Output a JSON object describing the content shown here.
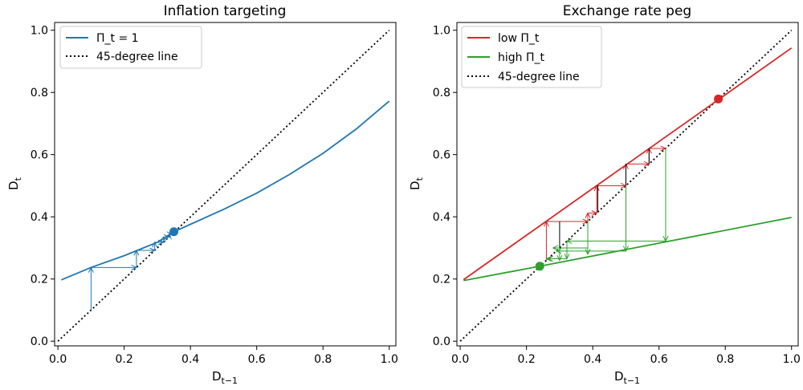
{
  "chart_data": [
    {
      "type": "line",
      "title": "Inflation targeting",
      "xlabel": "D_{t-1}",
      "ylabel": "D_t",
      "xlim": [
        -0.01,
        1.02
      ],
      "ylim": [
        -0.015,
        1.025
      ],
      "xticks": [
        "0.0",
        "0.2",
        "0.4",
        "0.6",
        "0.8",
        "1.0"
      ],
      "yticks": [
        "0.0",
        "0.2",
        "0.4",
        "0.6",
        "0.8",
        "1.0"
      ],
      "legend_position": "top-left",
      "grid": false,
      "series": [
        {
          "name": "Π_t = 1",
          "color": "#1f77b4",
          "style": "solid",
          "x": [
            0.01,
            0.1,
            0.2,
            0.3,
            0.35,
            0.4,
            0.5,
            0.6,
            0.7,
            0.8,
            0.9,
            1.0
          ],
          "y": [
            0.197,
            0.237,
            0.275,
            0.318,
            0.352,
            0.376,
            0.424,
            0.476,
            0.537,
            0.604,
            0.682,
            0.772
          ]
        },
        {
          "name": "45-degree line",
          "color": "#000000",
          "style": "dotted",
          "x": [
            0.0,
            1.0
          ],
          "y": [
            0.0,
            1.0
          ]
        }
      ],
      "points": [
        {
          "x": 0.35,
          "y": 0.352,
          "color": "#1f77b4"
        }
      ],
      "cobweb": {
        "color": "#1f77b4",
        "path": [
          [
            0.1,
            0.1
          ],
          [
            0.1,
            0.237
          ],
          [
            0.237,
            0.237
          ],
          [
            0.237,
            0.292
          ],
          [
            0.292,
            0.292
          ],
          [
            0.292,
            0.318
          ],
          [
            0.318,
            0.318
          ],
          [
            0.318,
            0.335
          ],
          [
            0.335,
            0.335
          ],
          [
            0.335,
            0.344
          ],
          [
            0.344,
            0.344
          ]
        ]
      }
    },
    {
      "type": "line",
      "title": "Exchange rate peg",
      "xlabel": "D_{t-1}",
      "ylabel": "D_t",
      "xlim": [
        -0.01,
        1.02
      ],
      "ylim": [
        -0.015,
        1.025
      ],
      "xticks": [
        "0.0",
        "0.2",
        "0.4",
        "0.6",
        "0.8",
        "1.0"
      ],
      "yticks": [
        "0.0",
        "0.2",
        "0.4",
        "0.6",
        "0.8",
        "1.0"
      ],
      "legend_position": "top-left",
      "grid": false,
      "series": [
        {
          "name": "low Π_t",
          "color": "#d62728",
          "style": "solid",
          "x": [
            0.01,
            1.0
          ],
          "y": [
            0.198,
            0.943
          ]
        },
        {
          "name": "high Π_t",
          "color": "#2ca02c",
          "style": "solid",
          "x": [
            0.01,
            0.24,
            1.0
          ],
          "y": [
            0.195,
            0.241,
            0.398
          ]
        },
        {
          "name": "45-degree line",
          "color": "#000000",
          "style": "dotted",
          "x": [
            0.0,
            1.0
          ],
          "y": [
            0.0,
            1.0
          ]
        }
      ],
      "points": [
        {
          "x": 0.779,
          "y": 0.779,
          "color": "#d62728"
        },
        {
          "x": 0.24,
          "y": 0.241,
          "color": "#2ca02c"
        }
      ],
      "cobweb_red": {
        "color": "#d62728",
        "path": [
          [
            0.26,
            0.26
          ],
          [
            0.26,
            0.385
          ],
          [
            0.385,
            0.385
          ],
          [
            0.385,
            0.412
          ],
          [
            0.412,
            0.412
          ],
          [
            0.412,
            0.5
          ],
          [
            0.5,
            0.5
          ],
          [
            0.5,
            0.57
          ],
          [
            0.57,
            0.57
          ],
          [
            0.57,
            0.62
          ],
          [
            0.62,
            0.62
          ]
        ]
      },
      "cobweb_red_vert": [
        [
          0.3,
          0.3,
          0.385
        ],
        [
          0.415,
          0.415,
          0.5
        ],
        [
          0.5,
          0.5,
          0.57
        ],
        [
          0.57,
          0.57,
          0.62
        ]
      ],
      "cobweb_green": {
        "color": "#2ca02c",
        "path": [
          [
            0.62,
            0.62
          ],
          [
            0.62,
            0.322
          ],
          [
            0.322,
            0.322
          ],
          [
            0.322,
            0.265
          ],
          [
            0.265,
            0.265
          ]
        ],
        "extra": [
          [
            0.5,
            0.5,
            0.29
          ],
          [
            0.385,
            0.385,
            0.28
          ],
          [
            0.3,
            0.3,
            0.26
          ]
        ],
        "horiz": [
          [
            0.5,
            0.29,
            0.29
          ],
          [
            0.385,
            0.3,
            0.28
          ],
          [
            0.3,
            0.265,
            0.26
          ]
        ]
      }
    }
  ]
}
